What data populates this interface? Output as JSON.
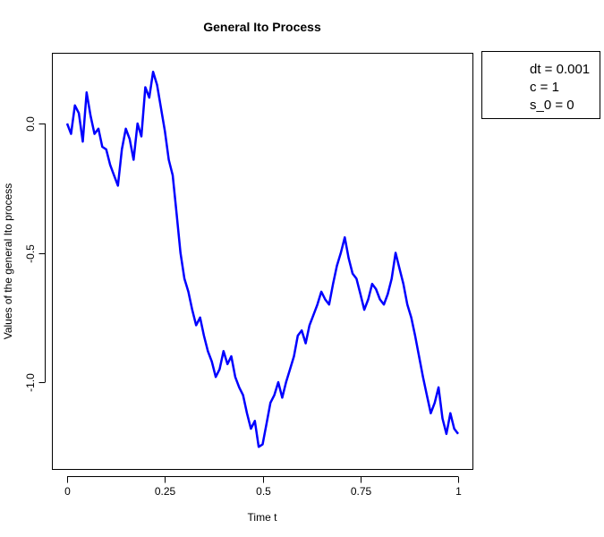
{
  "chart_data": {
    "type": "line",
    "title": "General Ito Process",
    "xlabel": "Time t",
    "ylabel": "Values of the general Ito process",
    "xlim": [
      0,
      1
    ],
    "ylim": [
      -1.3,
      0.22
    ],
    "x_ticks": [
      0,
      0.25,
      0.5,
      0.75,
      1
    ],
    "x_tick_labels": [
      "0",
      "0.25",
      "0.5",
      "0.75",
      "1"
    ],
    "y_ticks": [
      0.0,
      -0.5,
      -1.0
    ],
    "y_tick_labels": [
      "0.0",
      "-0.5",
      "-1.0"
    ],
    "grid": false,
    "legend_position": "outside-top-right",
    "legend_lines": [
      "dt = 0.001",
      "c  = 1",
      "s_0 = 0"
    ],
    "series": [
      {
        "color": "#0000ff",
        "x": [
          0,
          0.01,
          0.02,
          0.03,
          0.04,
          0.05,
          0.06,
          0.07,
          0.08,
          0.09,
          0.1,
          0.11,
          0.12,
          0.13,
          0.14,
          0.15,
          0.16,
          0.17,
          0.18,
          0.19,
          0.2,
          0.21,
          0.22,
          0.23,
          0.24,
          0.25,
          0.26,
          0.27,
          0.28,
          0.29,
          0.3,
          0.31,
          0.32,
          0.33,
          0.34,
          0.35,
          0.36,
          0.37,
          0.38,
          0.39,
          0.4,
          0.41,
          0.42,
          0.43,
          0.44,
          0.45,
          0.46,
          0.47,
          0.48,
          0.49,
          0.5,
          0.51,
          0.52,
          0.53,
          0.54,
          0.55,
          0.56,
          0.57,
          0.58,
          0.59,
          0.6,
          0.61,
          0.62,
          0.63,
          0.64,
          0.65,
          0.66,
          0.67,
          0.68,
          0.69,
          0.7,
          0.71,
          0.72,
          0.73,
          0.74,
          0.75,
          0.76,
          0.77,
          0.78,
          0.79,
          0.8,
          0.81,
          0.82,
          0.83,
          0.84,
          0.85,
          0.86,
          0.87,
          0.88,
          0.89,
          0.9,
          0.91,
          0.92,
          0.93,
          0.94,
          0.95,
          0.96,
          0.97,
          0.98,
          0.99,
          1.0
        ],
        "y": [
          0.0,
          -0.04,
          0.07,
          0.04,
          -0.07,
          0.12,
          0.03,
          -0.04,
          -0.02,
          -0.09,
          -0.1,
          -0.16,
          -0.2,
          -0.24,
          -0.1,
          -0.02,
          -0.06,
          -0.14,
          0.0,
          -0.05,
          0.14,
          0.1,
          0.2,
          0.15,
          0.06,
          -0.03,
          -0.14,
          -0.2,
          -0.35,
          -0.5,
          -0.6,
          -0.65,
          -0.72,
          -0.78,
          -0.75,
          -0.82,
          -0.88,
          -0.92,
          -0.98,
          -0.95,
          -0.88,
          -0.93,
          -0.9,
          -0.98,
          -1.02,
          -1.05,
          -1.12,
          -1.18,
          -1.15,
          -1.25,
          -1.24,
          -1.16,
          -1.08,
          -1.05,
          -1.0,
          -1.06,
          -1.0,
          -0.95,
          -0.9,
          -0.82,
          -0.8,
          -0.85,
          -0.78,
          -0.74,
          -0.7,
          -0.65,
          -0.68,
          -0.7,
          -0.62,
          -0.55,
          -0.5,
          -0.44,
          -0.52,
          -0.58,
          -0.6,
          -0.66,
          -0.72,
          -0.68,
          -0.62,
          -0.64,
          -0.68,
          -0.7,
          -0.66,
          -0.6,
          -0.5,
          -0.56,
          -0.62,
          -0.7,
          -0.75,
          -0.82,
          -0.9,
          -0.98,
          -1.05,
          -1.12,
          -1.08,
          -1.02,
          -1.14,
          -1.2,
          -1.12,
          -1.18,
          -1.2
        ]
      }
    ]
  }
}
